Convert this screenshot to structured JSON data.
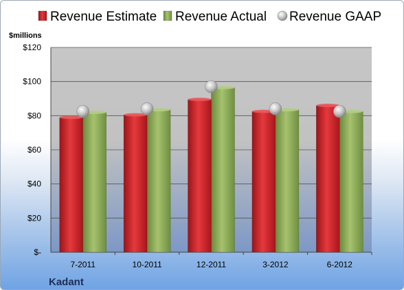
{
  "chart_data": {
    "type": "bar",
    "categories": [
      "7-2011",
      "10-2011",
      "12-2011",
      "3-2012",
      "6-2012"
    ],
    "series": [
      {
        "name": "Revenue Estimate",
        "kind": "bar",
        "color": "#cc1f24",
        "values": [
          79,
          80.5,
          89.5,
          82.5,
          86
        ]
      },
      {
        "name": "Revenue Actual",
        "kind": "bar",
        "color": "#8fae5a",
        "values": [
          82,
          83.5,
          96.5,
          83.5,
          82.5
        ]
      },
      {
        "name": "Revenue GAAP",
        "kind": "marker",
        "color": "#c8c8c8",
        "values": [
          82.5,
          84,
          97,
          84,
          82.5
        ]
      }
    ],
    "ylabel": "$millions",
    "y_ticks": [
      0,
      20,
      40,
      60,
      80,
      100,
      120
    ],
    "y_tick_labels": [
      "$-",
      "$20",
      "$40",
      "$60",
      "$80",
      "$100",
      "$120"
    ],
    "ylim": [
      0,
      120
    ],
    "grid": true,
    "legend_position": "top",
    "company": "Kadant"
  }
}
